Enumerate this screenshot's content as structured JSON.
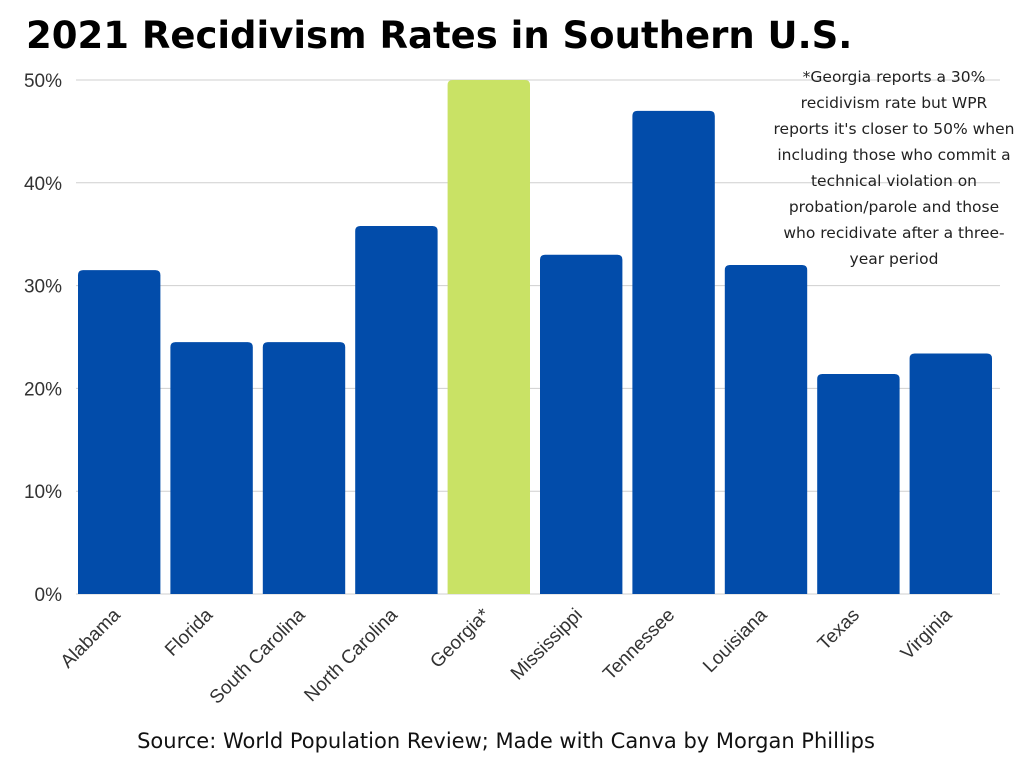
{
  "chart_data": {
    "type": "bar",
    "title": "2021 Recidivism Rates in Southern U.S.",
    "categories": [
      "Alabama",
      "Florida",
      "South Carolina",
      "North Carolina",
      "Georgia*",
      "Mississippi",
      "Tennessee",
      "Louisiana",
      "Texas",
      "Virginia"
    ],
    "values": [
      31.5,
      24.5,
      24.5,
      35.8,
      50,
      33,
      47,
      32,
      21.4,
      23.4
    ],
    "highlighted_category": "Georgia*",
    "ylim": [
      0,
      50
    ],
    "yticks": [
      0,
      10,
      20,
      30,
      40,
      50
    ],
    "ytick_labels": [
      "0%",
      "10%",
      "20%",
      "30%",
      "40%",
      "50%"
    ],
    "xlabel": "",
    "ylabel": "",
    "grid": true,
    "bar_color": "#024CAA",
    "highlight_color": "#C9E265",
    "annotation": "*Georgia reports a 30% recidivism rate but WPR reports it's closer to 50% when including  those who commit a technical violation on probation/parole and those who recidivate after a three-year period",
    "source": "Source: World Population Review; Made with Canva by Morgan Phillips"
  }
}
